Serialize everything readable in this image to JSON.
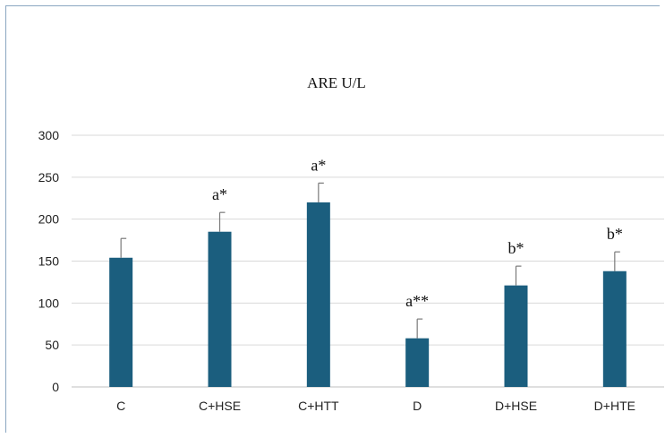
{
  "chart_data": {
    "type": "bar",
    "title": "ARE U/L",
    "xlabel": "",
    "ylabel": "",
    "categories": [
      "C",
      "C+HSE",
      "C+HTT",
      "D",
      "D+HSE",
      "D+HTE"
    ],
    "values": [
      154,
      185,
      220,
      58,
      121,
      138
    ],
    "error_plus": [
      23,
      23,
      23,
      23,
      23,
      23
    ],
    "annotations": [
      "",
      "a*",
      "a*",
      "a**",
      "b*",
      "b*"
    ],
    "ylim": [
      0,
      300
    ],
    "yticks": [
      0,
      50,
      100,
      150,
      200,
      250,
      300
    ],
    "grid": "horizontal",
    "legend": "none",
    "colors": {
      "bar": "#1b5e7e",
      "grid": "#d9d9d9",
      "error_bar": "#7a7a7a"
    }
  }
}
